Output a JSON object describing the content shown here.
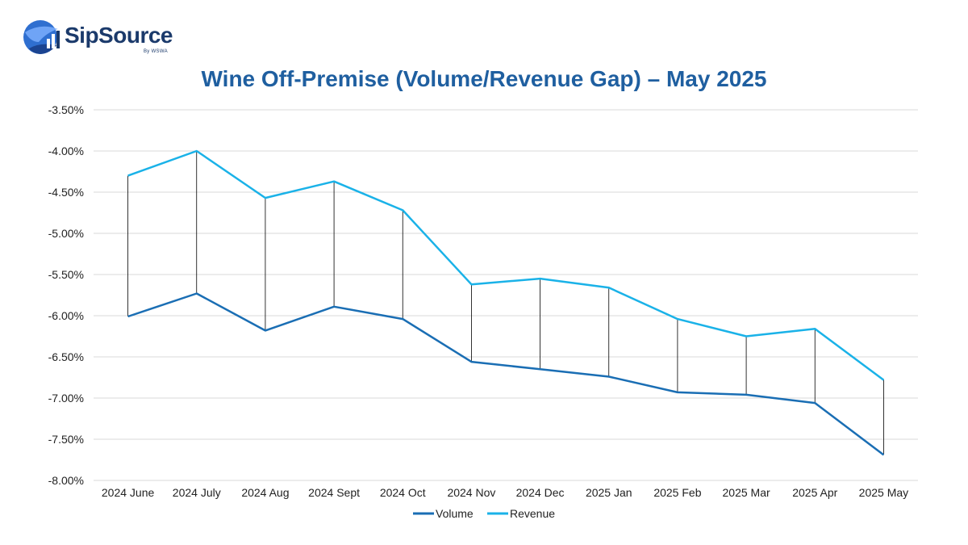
{
  "logo": {
    "name": "SipSource",
    "sub": "By WSWA"
  },
  "colors": {
    "volume": "#1a6eb4",
    "revenue": "#1ab2e8",
    "title": "#1f5fa0",
    "grid": "#d9d9d9",
    "gap_line": "#000000"
  },
  "chart_data": {
    "type": "line",
    "title": "Wine Off-Premise (Volume/Revenue Gap) – May 2025",
    "xlabel": "",
    "ylabel": "",
    "categories": [
      "2024 June",
      "2024 July",
      "2024 Aug",
      "2024 Sept",
      "2024 Oct",
      "2024 Nov",
      "2024 Dec",
      "2025 Jan",
      "2025 Feb",
      "2025 Mar",
      "2025 Apr",
      "2025 May"
    ],
    "series": [
      {
        "name": "Volume",
        "values": [
          -6.01,
          -5.73,
          -6.18,
          -5.89,
          -6.04,
          -6.56,
          -6.65,
          -6.74,
          -6.93,
          -6.96,
          -7.06,
          -7.69
        ]
      },
      {
        "name": "Revenue",
        "values": [
          -4.3,
          -4.0,
          -4.57,
          -4.37,
          -4.72,
          -5.62,
          -5.55,
          -5.66,
          -6.04,
          -6.25,
          -6.16,
          -6.78
        ]
      }
    ],
    "ylim": [
      -8.0,
      -3.5
    ],
    "yticks": [
      "-3.50%",
      "-4.00%",
      "-4.50%",
      "-5.00%",
      "-5.50%",
      "-6.00%",
      "-6.50%",
      "-7.00%",
      "-7.50%",
      "-8.00%"
    ],
    "ytick_values": [
      -3.5,
      -4.0,
      -4.5,
      -5.0,
      -5.5,
      -6.0,
      -6.5,
      -7.0,
      -7.5,
      -8.0
    ],
    "grid": true,
    "legend": "bottom-center",
    "gap_lines": true
  }
}
